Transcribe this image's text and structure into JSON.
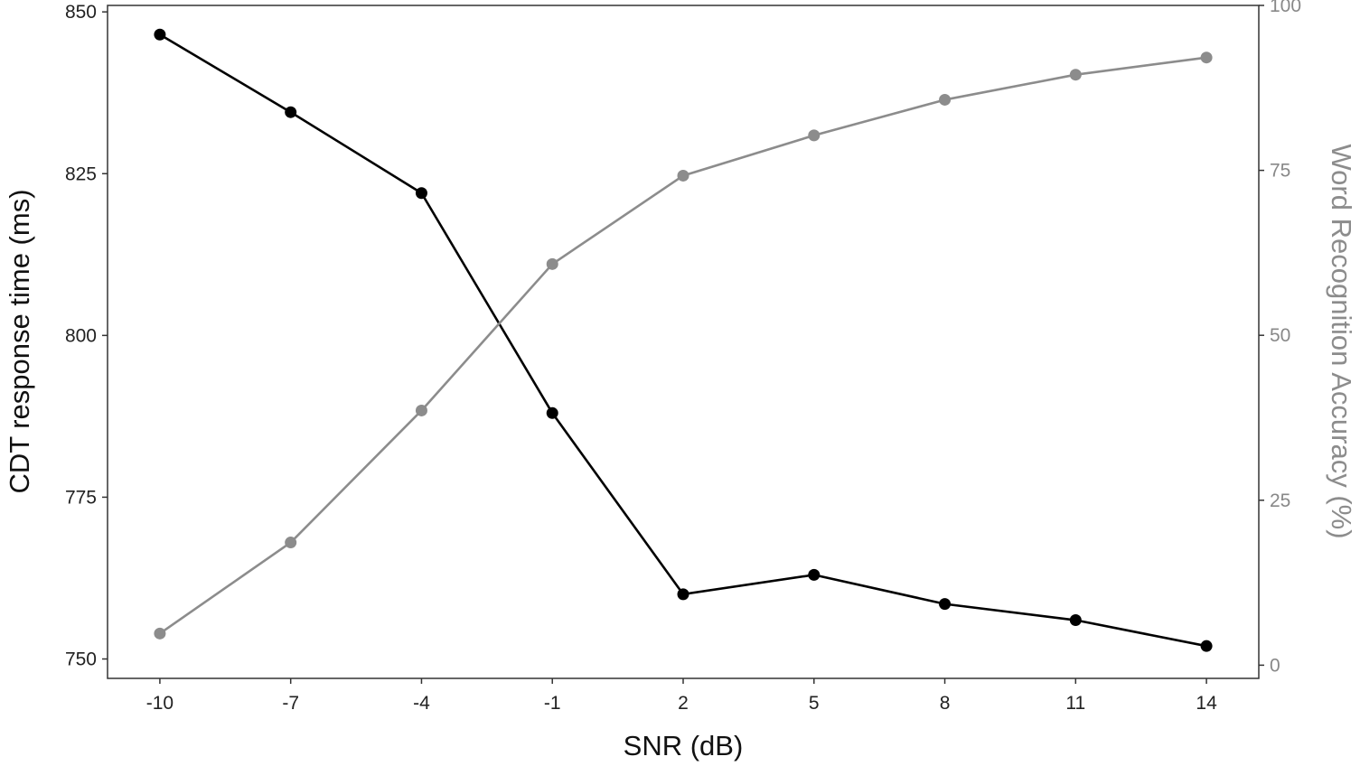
{
  "chart_data": {
    "type": "line",
    "x": [
      -10,
      -7,
      -4,
      -1,
      2,
      5,
      8,
      11,
      14
    ],
    "xlabel": "SNR (dB)",
    "ylabel": "CDT response time (ms)",
    "y2label": "Word Recognition Accuracy (%)",
    "xlim": [
      -11.2,
      15.2
    ],
    "ylim": [
      747,
      851
    ],
    "y2lim": [
      -2,
      100
    ],
    "xticks": [
      "-10",
      "-7",
      "-4",
      "-1",
      "2",
      "5",
      "8",
      "11",
      "14"
    ],
    "yticks": [
      "750",
      "775",
      "800",
      "825",
      "850"
    ],
    "y2ticks": [
      "0",
      "25",
      "50",
      "75",
      "100"
    ],
    "grid": false,
    "legend": "none",
    "series": [
      {
        "axis": "left",
        "color": "#000000",
        "values": [
          846.5,
          834.5,
          822,
          788,
          760,
          763,
          758.5,
          756,
          752
        ]
      },
      {
        "axis": "right",
        "color": "#8c8c8c",
        "values": [
          4.8,
          18.6,
          38.6,
          60.8,
          74.2,
          80.3,
          85.7,
          89.5,
          92.1
        ]
      }
    ]
  }
}
